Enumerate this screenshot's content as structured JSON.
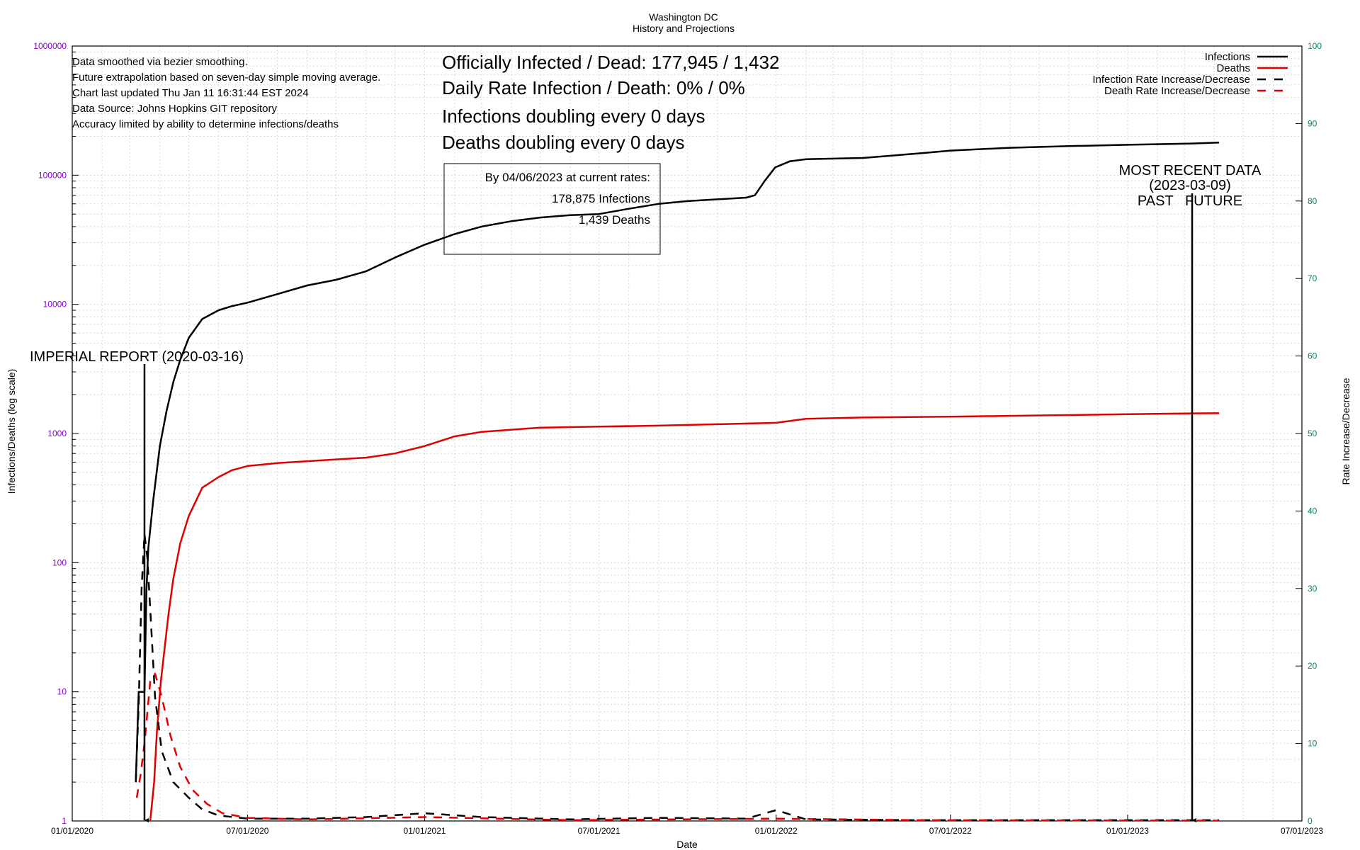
{
  "chart_data": {
    "type": "line",
    "title": "Washington DC",
    "subtitle": "History and Projections",
    "xlabel": "Date",
    "ylabel_left": "Infections/Deaths (log scale)",
    "ylabel_right": "Rate Increase/Decrease",
    "x_ticks": [
      "01/01/2020",
      "07/01/2020",
      "01/01/2021",
      "07/01/2021",
      "01/01/2022",
      "07/01/2022",
      "01/01/2023",
      "07/01/2023"
    ],
    "xlim": [
      "2020-01-01",
      "2023-07-01"
    ],
    "y_left_scale": "log",
    "y_left_ticks": [
      "1",
      "10",
      "100",
      "1000",
      "10000",
      "100000",
      "1000000"
    ],
    "y_left_lim": [
      1,
      1000000
    ],
    "y_right_ticks": [
      "0",
      "10",
      "20",
      "30",
      "40",
      "50",
      "60",
      "70",
      "80",
      "90",
      "100"
    ],
    "y_right_lim": [
      0,
      100
    ],
    "grid": true,
    "legend_position": "top-right",
    "colors": {
      "infections": "#000000",
      "deaths": "#e00000",
      "left_axis_labels": "#8b00d0",
      "right_axis_labels": "#008a5a"
    },
    "info_lines": [
      "Data smoothed via bezier smoothing.",
      "Future extrapolation based on seven-day simple moving average.",
      "Chart last updated Thu Jan 11 16:31:44 EST 2024",
      "Data Source: Johns Hopkins GIT repository",
      "Accuracy limited by ability to determine infections/deaths"
    ],
    "headline": {
      "line1": "Officially Infected / Dead:  177,945 / 1,432",
      "line2": "Daily Rate Infection / Death:  0% / 0%",
      "line3": "Infections doubling every 0 days",
      "line4": "Deaths doubling every 0 days"
    },
    "projection_box": {
      "line1": "By 04/06/2023 at current rates:",
      "line2": "178,875 Infections",
      "line3": "1,439 Deaths"
    },
    "annotations": {
      "imperial": {
        "label": "IMPERIAL REPORT (2020-03-16)",
        "date": "2020-03-16"
      },
      "recent": {
        "line1": "MOST RECENT DATA",
        "line2": "(2023-03-09)",
        "line3": "PAST   FUTURE",
        "date": "2023-03-09"
      }
    },
    "series": [
      {
        "name": "Infections",
        "axis": "left",
        "style": "solid",
        "color": "#000000",
        "points": [
          [
            "2020-03-07",
            2
          ],
          [
            "2020-03-10",
            10
          ],
          [
            "2020-03-16",
            10
          ],
          [
            "2020-03-18",
            60
          ],
          [
            "2020-03-20",
            130
          ],
          [
            "2020-03-25",
            300
          ],
          [
            "2020-04-01",
            800
          ],
          [
            "2020-04-08",
            1500
          ],
          [
            "2020-04-15",
            2500
          ],
          [
            "2020-04-22",
            3700
          ],
          [
            "2020-05-01",
            5500
          ],
          [
            "2020-05-15",
            7700
          ],
          [
            "2020-06-01",
            9000
          ],
          [
            "2020-06-15",
            9700
          ],
          [
            "2020-07-01",
            10300
          ],
          [
            "2020-08-01",
            12000
          ],
          [
            "2020-09-01",
            14000
          ],
          [
            "2020-10-01",
            15500
          ],
          [
            "2020-11-01",
            18000
          ],
          [
            "2020-12-01",
            23000
          ],
          [
            "2021-01-01",
            29000
          ],
          [
            "2021-02-01",
            35000
          ],
          [
            "2021-03-01",
            40000
          ],
          [
            "2021-04-01",
            44000
          ],
          [
            "2021-05-01",
            47000
          ],
          [
            "2021-06-01",
            49000
          ],
          [
            "2021-07-01",
            50000
          ],
          [
            "2021-08-01",
            55000
          ],
          [
            "2021-09-01",
            60000
          ],
          [
            "2021-10-01",
            63000
          ],
          [
            "2021-11-01",
            65000
          ],
          [
            "2021-12-01",
            67000
          ],
          [
            "2021-12-10",
            70000
          ],
          [
            "2021-12-20",
            90000
          ],
          [
            "2021-12-31",
            115000
          ],
          [
            "2022-01-15",
            128000
          ],
          [
            "2022-02-01",
            133000
          ],
          [
            "2022-04-01",
            136000
          ],
          [
            "2022-06-01",
            148000
          ],
          [
            "2022-07-01",
            155000
          ],
          [
            "2022-09-01",
            163000
          ],
          [
            "2022-11-01",
            168000
          ],
          [
            "2023-01-01",
            172000
          ],
          [
            "2023-03-09",
            176000
          ],
          [
            "2023-04-06",
            178875
          ]
        ]
      },
      {
        "name": "Deaths",
        "axis": "left",
        "style": "solid",
        "color": "#e00000",
        "points": [
          [
            "2020-03-22",
            1
          ],
          [
            "2020-03-26",
            2
          ],
          [
            "2020-03-29",
            5
          ],
          [
            "2020-04-02",
            12
          ],
          [
            "2020-04-06",
            22
          ],
          [
            "2020-04-10",
            40
          ],
          [
            "2020-04-15",
            75
          ],
          [
            "2020-04-22",
            140
          ],
          [
            "2020-05-01",
            230
          ],
          [
            "2020-05-15",
            380
          ],
          [
            "2020-06-01",
            460
          ],
          [
            "2020-06-15",
            520
          ],
          [
            "2020-07-01",
            560
          ],
          [
            "2020-08-01",
            590
          ],
          [
            "2020-09-01",
            610
          ],
          [
            "2020-10-01",
            630
          ],
          [
            "2020-11-01",
            650
          ],
          [
            "2020-12-01",
            700
          ],
          [
            "2021-01-01",
            800
          ],
          [
            "2021-02-01",
            950
          ],
          [
            "2021-03-01",
            1030
          ],
          [
            "2021-04-01",
            1070
          ],
          [
            "2021-05-01",
            1110
          ],
          [
            "2021-06-01",
            1120
          ],
          [
            "2021-07-01",
            1130
          ],
          [
            "2021-09-01",
            1150
          ],
          [
            "2021-11-01",
            1180
          ],
          [
            "2022-01-01",
            1210
          ],
          [
            "2022-02-01",
            1300
          ],
          [
            "2022-04-01",
            1330
          ],
          [
            "2022-07-01",
            1350
          ],
          [
            "2022-10-01",
            1380
          ],
          [
            "2023-01-01",
            1410
          ],
          [
            "2023-03-09",
            1432
          ],
          [
            "2023-04-06",
            1439
          ]
        ]
      },
      {
        "name": "Infection Rate Increase/Decrease",
        "axis": "right",
        "style": "dashed",
        "color": "#000000",
        "points": [
          [
            "2020-03-07",
            5
          ],
          [
            "2020-03-10",
            15
          ],
          [
            "2020-03-13",
            30
          ],
          [
            "2020-03-16",
            37
          ],
          [
            "2020-03-19",
            34
          ],
          [
            "2020-03-23",
            25
          ],
          [
            "2020-03-27",
            16
          ],
          [
            "2020-04-03",
            9
          ],
          [
            "2020-04-15",
            5
          ],
          [
            "2020-05-01",
            3
          ],
          [
            "2020-05-15",
            1.5
          ],
          [
            "2020-06-01",
            0.7
          ],
          [
            "2020-07-01",
            0.3
          ],
          [
            "2020-09-01",
            0.3
          ],
          [
            "2020-11-01",
            0.5
          ],
          [
            "2021-01-01",
            1.0
          ],
          [
            "2021-03-01",
            0.5
          ],
          [
            "2021-06-01",
            0.2
          ],
          [
            "2021-09-01",
            0.4
          ],
          [
            "2021-12-01",
            0.3
          ],
          [
            "2022-01-01",
            1.4
          ],
          [
            "2022-02-01",
            0.2
          ],
          [
            "2022-06-01",
            0.1
          ],
          [
            "2022-10-01",
            0.1
          ],
          [
            "2023-03-09",
            0.1
          ],
          [
            "2023-04-06",
            0.1
          ]
        ]
      },
      {
        "name": "Death Rate Increase/Decrease",
        "axis": "right",
        "style": "dashed",
        "color": "#e00000",
        "points": [
          [
            "2020-03-08",
            3
          ],
          [
            "2020-03-12",
            6
          ],
          [
            "2020-03-16",
            10
          ],
          [
            "2020-03-22",
            18
          ],
          [
            "2020-03-27",
            19
          ],
          [
            "2020-04-03",
            16
          ],
          [
            "2020-04-12",
            11
          ],
          [
            "2020-04-22",
            7
          ],
          [
            "2020-05-05",
            4
          ],
          [
            "2020-05-20",
            2.2
          ],
          [
            "2020-06-05",
            1
          ],
          [
            "2020-07-01",
            0.4
          ],
          [
            "2020-09-01",
            0.2
          ],
          [
            "2021-01-01",
            0.5
          ],
          [
            "2021-06-01",
            0.1
          ],
          [
            "2022-01-01",
            0.3
          ],
          [
            "2022-06-01",
            0.1
          ],
          [
            "2023-03-09",
            0.05
          ],
          [
            "2023-04-06",
            0.05
          ]
        ]
      }
    ]
  }
}
